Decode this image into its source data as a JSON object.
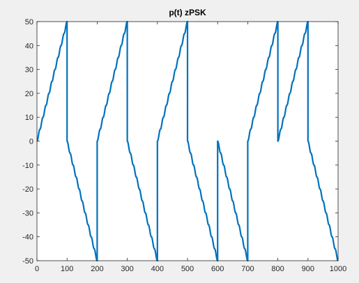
{
  "chart_data": {
    "type": "line",
    "title": "p(t) zPSK",
    "xlabel": "",
    "ylabel": "",
    "xlim": [
      0,
      1000
    ],
    "ylim": [
      -50,
      50
    ],
    "xticks": [
      0,
      100,
      200,
      300,
      400,
      500,
      600,
      700,
      800,
      900,
      1000
    ],
    "yticks": [
      -50,
      -40,
      -30,
      -20,
      -10,
      0,
      10,
      20,
      30,
      40,
      50
    ],
    "xtick_labels": [
      "0",
      "100",
      "200",
      "300",
      "400",
      "500",
      "600",
      "700",
      "800",
      "900",
      "1000"
    ],
    "ytick_labels": [
      "-50",
      "-40",
      "-30",
      "-20",
      "-10",
      "0",
      "10",
      "20",
      "30",
      "40",
      "50"
    ],
    "grid": false,
    "line_color": "#0072bd",
    "axes_background": "#ffffff",
    "figure_background": "#f0f0f0",
    "series": [
      {
        "values_description_free": true,
        "x": [
          0,
          100,
          100,
          200,
          200,
          300,
          300,
          400,
          400,
          500,
          500,
          600,
          600,
          700,
          700,
          800,
          800,
          900,
          900,
          1000
        ],
        "y": [
          0,
          50,
          0,
          -50,
          0,
          50,
          0,
          -50,
          0,
          50,
          0,
          -50,
          0,
          -50,
          0,
          50,
          0,
          50,
          0,
          -50
        ]
      }
    ]
  }
}
